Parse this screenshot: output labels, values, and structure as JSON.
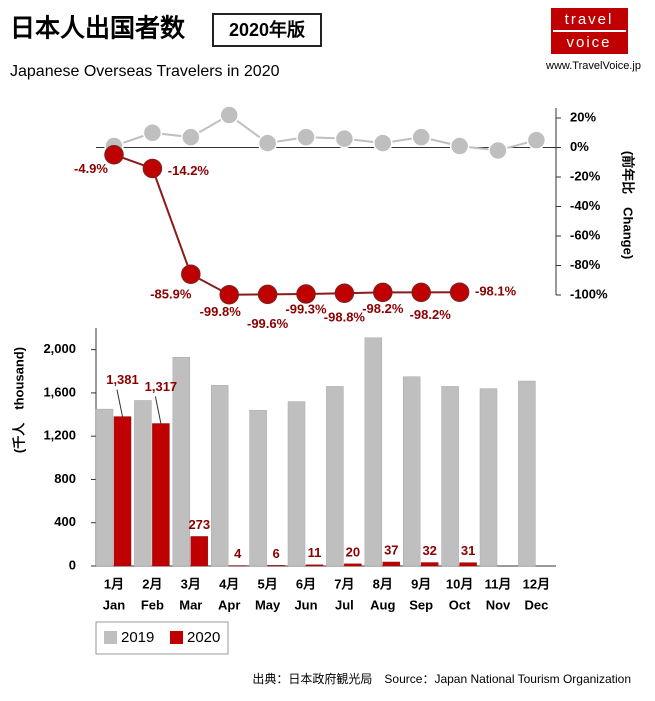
{
  "header": {
    "title": "日本人出国者数",
    "badge": "2020年版",
    "subtitle": "Japanese Overseas Travelers in 2020",
    "logo": [
      "travel",
      "voice"
    ],
    "url": "www.TravelVoice.jp"
  },
  "chart_data": [
    {
      "type": "line",
      "y_label": "(前年比　Change)",
      "y2lim": [
        -100,
        20
      ],
      "y2ticks": [
        {
          "value": 20,
          "label": "20%"
        },
        {
          "value": 0,
          "label": "0%"
        },
        {
          "value": -20,
          "label": "-20%"
        },
        {
          "value": -40,
          "label": "-40%"
        },
        {
          "value": -60,
          "label": "-60%"
        },
        {
          "value": -80,
          "label": "-80%"
        },
        {
          "value": -100,
          "label": "-100%"
        }
      ],
      "series": [
        {
          "color": "#bfbfbf",
          "axis": "y2",
          "values": [
            1,
            10,
            7,
            22,
            3,
            7,
            6,
            3,
            7,
            1,
            -2,
            5
          ]
        },
        {
          "color": "#c00000",
          "axis": "y2",
          "values": [
            -4.9,
            -14.2,
            -85.9,
            -99.8,
            -99.6,
            -99.3,
            -98.8,
            -98.2,
            -98.2,
            -98.1,
            null,
            null
          ],
          "value_labels": [
            "-4.9%",
            "-14.2%",
            "-85.9%",
            "-99.8%",
            "-99.6%",
            "-99.3%",
            "-98.8%",
            "-98.2%",
            "-98.2%",
            "-98.1%",
            null,
            null
          ]
        }
      ]
    },
    {
      "type": "bar",
      "y_label": "(千人　thousand)",
      "categories": [
        "1月",
        "2月",
        "3月",
        "4月",
        "5月",
        "6月",
        "7月",
        "8月",
        "9月",
        "10月",
        "11月",
        "12月"
      ],
      "categories_en": [
        "Jan",
        "Feb",
        "Mar",
        "Apr",
        "May",
        "Jun",
        "Jul",
        "Aug",
        "Sep",
        "Oct",
        "Nov",
        "Dec"
      ],
      "ylim": [
        0,
        2200
      ],
      "yticks": [
        0,
        400,
        800,
        {
          "value": 1200,
          "label": "1,200"
        },
        {
          "value": 1600,
          "label": "1,600"
        },
        {
          "value": 2000,
          "label": "2,000"
        }
      ],
      "series": [
        {
          "name": "2019",
          "color": "#bfbfbf",
          "values": [
            1450,
            1530,
            1930,
            1670,
            1440,
            1520,
            1660,
            2110,
            1750,
            1660,
            1640,
            1710
          ]
        },
        {
          "name": "2020",
          "color": "#c00000",
          "values": [
            1381,
            1317,
            273,
            4,
            6,
            11,
            20,
            37,
            32,
            31,
            null,
            null
          ],
          "value_labels": [
            "1,381",
            "1,317",
            "273",
            "4",
            "6",
            "11",
            "20",
            "37",
            "32",
            "31",
            null,
            null
          ]
        }
      ]
    }
  ],
  "footer": {
    "source": "出典：日本政府観光局　Source：Japan National Tourism Organization"
  }
}
